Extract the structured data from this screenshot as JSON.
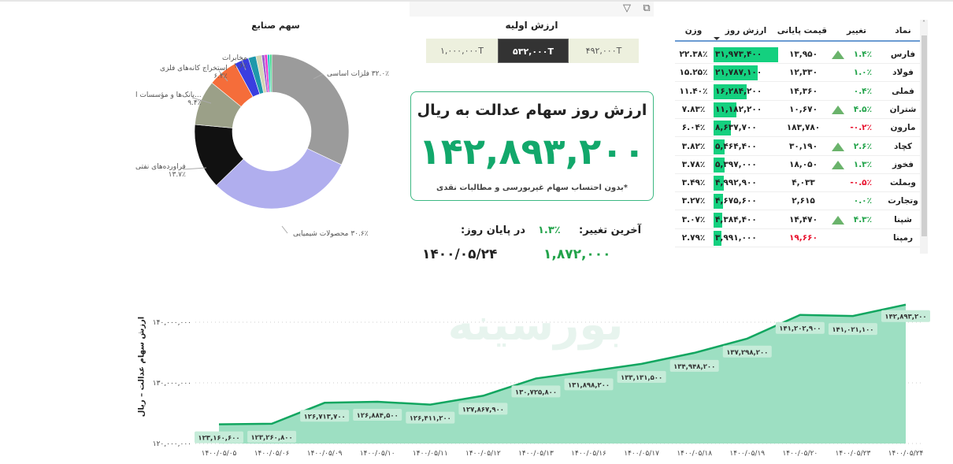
{
  "toolbar": {
    "icons": [
      "filter-icon",
      "focus-mode-icon"
    ]
  },
  "slicer": {
    "title": "ارزش اولیه",
    "options": [
      {
        "label": "۱,۰۰۰,۰۰۰T",
        "selected": false
      },
      {
        "label": "۵۳۲,۰۰۰T",
        "selected": true
      },
      {
        "label": "۴۹۲,۰۰۰T",
        "selected": false
      }
    ]
  },
  "card": {
    "title": "ارزش روز سهام عدالت به ریال",
    "value": "۱۴۲,۸۹۳,۲۰۰",
    "note": "*بدون احتساب سهام غیربورسی و مطالبات نقدی",
    "accent": "#12a86b"
  },
  "summary": {
    "last_change_label": "آخرین تغییر:",
    "last_change_value": "۱.۳٪",
    "end_of_day_label": "در پایان روز:",
    "amount": "۱,۸۷۲,۰۰۰",
    "date": "۱۴۰۰/۰۵/۲۴"
  },
  "table": {
    "headers": {
      "symbol": "نماد",
      "change": "تغییر",
      "close": "قیمت پایانی",
      "value": "ارزش روز",
      "weight": "وزن"
    },
    "sorted_by": "value",
    "rows": [
      {
        "symbol": "فارس",
        "change": "۱.۴٪",
        "dir": "up",
        "arrow": true,
        "close": "۱۳,۹۵۰",
        "value": "۳۱,۹۷۳,۴۰۰",
        "value_num": 31973400,
        "weight": "۲۲.۳۸٪"
      },
      {
        "symbol": "فولاد",
        "change": "۱.۰٪",
        "dir": "up",
        "arrow": false,
        "close": "۱۲,۳۳۰",
        "value": "۲۱,۷۸۷,۱۰۰",
        "value_num": 21787100,
        "weight": "۱۵.۲۵٪"
      },
      {
        "symbol": "فملی",
        "change": "۰.۴٪",
        "dir": "up",
        "arrow": false,
        "close": "۱۴,۳۶۰",
        "value": "۱۶,۲۸۴,۲۰۰",
        "value_num": 16284200,
        "weight": "۱۱.۴۰٪"
      },
      {
        "symbol": "شتران",
        "change": "۴.۵٪",
        "dir": "up",
        "arrow": true,
        "close": "۱۰,۶۷۰",
        "value": "۱۱,۱۸۲,۲۰۰",
        "value_num": 11182200,
        "weight": "۷.۸۳٪"
      },
      {
        "symbol": "مارون",
        "change": "-۰.۲٪",
        "dir": "down",
        "arrow": false,
        "close": "۱۸۳,۷۸۰",
        "value": "۸,۶۳۷,۷۰۰",
        "value_num": 8637700,
        "weight": "۶.۰۴٪"
      },
      {
        "symbol": "کچاد",
        "change": "۲.۶٪",
        "dir": "up",
        "arrow": true,
        "close": "۳۰,۱۹۰",
        "value": "۵,۴۶۴,۴۰۰",
        "value_num": 5464400,
        "weight": "۳.۸۲٪"
      },
      {
        "symbol": "فخوز",
        "change": "۱.۳٪",
        "dir": "up",
        "arrow": true,
        "close": "۱۸,۰۵۰",
        "value": "۵,۳۹۷,۰۰۰",
        "value_num": 5397000,
        "weight": "۳.۷۸٪"
      },
      {
        "symbol": "وبملت",
        "change": "-۰.۵٪",
        "dir": "down",
        "arrow": false,
        "close": "۴,۰۳۳",
        "value": "۴,۹۹۲,۹۰۰",
        "value_num": 4992900,
        "weight": "۳.۴۹٪"
      },
      {
        "symbol": "وتجارت",
        "change": "۰.۰٪",
        "dir": "up",
        "arrow": false,
        "close": "۲,۶۱۵",
        "value": "۴,۶۷۵,۶۰۰",
        "value_num": 4675600,
        "weight": "۳.۲۷٪"
      },
      {
        "symbol": "شپنا",
        "change": "۴.۳٪",
        "dir": "up",
        "arrow": true,
        "close": "۱۴,۴۷۰",
        "value": "۴,۳۸۴,۴۰۰",
        "value_num": 4384400,
        "weight": "۳.۰۷٪"
      },
      {
        "symbol": "رمپنا",
        "change": "",
        "dir": "none",
        "arrow": false,
        "close": "۱۹,۶۶۰",
        "close_red": true,
        "value": "۳,۹۹۱,۰۰۰",
        "value_num": 3991000,
        "weight": "۲.۷۹٪"
      }
    ],
    "colors": {
      "up": "#22a34a",
      "down": "#e8112d",
      "bar": "#14d07f"
    }
  },
  "pie": {
    "title": "سهم صنایع",
    "slices": [
      {
        "name": "فلزات اساسی",
        "pct_label": "۳۲.۰٪",
        "value": 32.0,
        "color": "#9b9b9b"
      },
      {
        "name": "محصولات شیمیایی",
        "pct_label": "۳۰.۶٪",
        "value": 30.6,
        "color": "#b0aeee"
      },
      {
        "name": "فراورده‌های نفتی",
        "pct_label": "۱۳.۷٪",
        "value": 13.7,
        "color": "#111111"
      },
      {
        "name": "...بانک‌ها و مؤسسات ا",
        "pct_label": "۹.۴٪",
        "value": 9.4,
        "color": "#9ba088"
      },
      {
        "name": "استخراج کانه‌های فلزی",
        "pct_label": "۶.۲٪",
        "value": 6.2,
        "color": "#f56d3a"
      },
      {
        "value": 3.0,
        "color": "#3a3ee0"
      },
      {
        "name": "مخابرات",
        "pct_label": "۱.۶٪",
        "value": 1.6,
        "color": "#1e98ab"
      },
      {
        "value": 1.2,
        "color": "#d5d6b5"
      },
      {
        "value": 0.6,
        "color": "#9b5fd0"
      },
      {
        "value": 0.6,
        "color": "#e83ad0"
      },
      {
        "value": 0.5,
        "color": "#24c7c7"
      },
      {
        "value": 0.4,
        "color": "#32d985"
      }
    ]
  },
  "watermark": "بورسینه",
  "chart_data": {
    "type": "area",
    "ylabel": "ارزش سهام عدالت – ریال",
    "xlabel": "",
    "ylim": [
      120000000,
      144000000
    ],
    "yticks": [
      {
        "v": 120000000,
        "label": "۱۲۰,۰۰۰,۰۰۰"
      },
      {
        "v": 130000000,
        "label": "۱۳۰,۰۰۰,۰۰۰"
      },
      {
        "v": 140000000,
        "label": "۱۴۰,۰۰۰,۰۰۰"
      }
    ],
    "grid": true,
    "color": "#12a660",
    "fill": "#9ddfc2",
    "categories": [
      "۱۴۰۰/۰۵/۰۵",
      "۱۴۰۰/۰۵/۰۶",
      "۱۴۰۰/۰۵/۰۹",
      "۱۴۰۰/۰۵/۱۰",
      "۱۴۰۰/۰۵/۱۱",
      "۱۴۰۰/۰۵/۱۲",
      "۱۴۰۰/۰۵/۱۳",
      "۱۴۰۰/۰۵/۱۶",
      "۱۴۰۰/۰۵/۱۷",
      "۱۴۰۰/۰۵/۱۸",
      "۱۴۰۰/۰۵/۱۹",
      "۱۴۰۰/۰۵/۲۰",
      "۱۴۰۰/۰۵/۲۳",
      "۱۴۰۰/۰۵/۲۴"
    ],
    "values": [
      123160600,
      123260800,
      126713700,
      126884500,
      126411200,
      127867900,
      130725800,
      131898200,
      133131500,
      134948200,
      137298200,
      141202900,
      141021100,
      142893200
    ]
  }
}
